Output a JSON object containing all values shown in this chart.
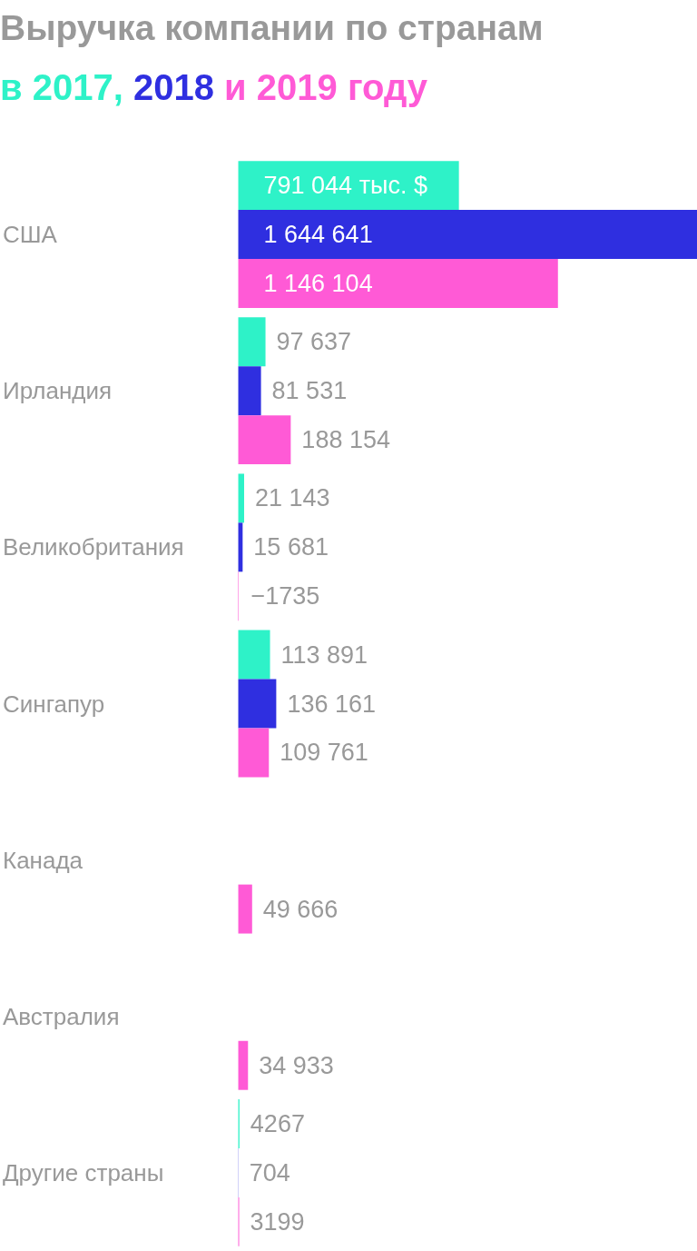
{
  "chart_data": {
    "type": "bar",
    "title": "Выручка компании по странам",
    "subtitle": "в 2017, 2018 и 2019 году",
    "categories": [
      "США",
      "Ирландия",
      "Великобритания",
      "Сингапур",
      "Канада",
      "Австралия",
      "Другие страны"
    ],
    "series": [
      {
        "color": "#2ef2c8",
        "values": [
          791044,
          97637,
          21143,
          113891,
          null,
          null,
          4267
        ],
        "value_labels": [
          "791 044 тыс. $",
          "97 637",
          "21 143",
          "113 891",
          null,
          null,
          "4267"
        ]
      },
      {
        "color": "#2f2fe0",
        "values": [
          1644641,
          81531,
          15681,
          136161,
          null,
          null,
          704
        ],
        "value_labels": [
          "1 644 641",
          "81 531",
          "15 681",
          "136 161",
          null,
          null,
          "704"
        ]
      },
      {
        "color": "#ff5ad6",
        "values": [
          1146104,
          188154,
          -1735,
          109761,
          49666,
          34933,
          3199
        ],
        "value_labels": [
          "1 146 104",
          "188 154",
          "−1735",
          "109 761",
          "49 666",
          "34 933",
          "3199"
        ]
      }
    ],
    "orientation": "horizontal"
  }
}
